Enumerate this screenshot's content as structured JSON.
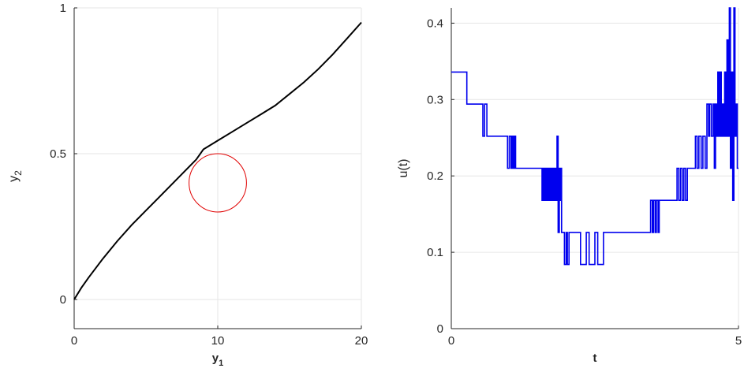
{
  "chart_data": [
    {
      "type": "line",
      "title": "",
      "xlabel_main": "y",
      "xlabel_sub": "1",
      "ylabel_main": "y",
      "ylabel_sub": "2",
      "xlim": [
        0,
        20
      ],
      "ylim": [
        -0.1,
        1.0
      ],
      "xticks": [
        0,
        10,
        20
      ],
      "xtick_labels": [
        "0",
        "10",
        "20"
      ],
      "yticks": [
        0,
        0.5,
        1
      ],
      "ytick_labels": [
        "0",
        "0.5",
        "1"
      ],
      "grid": true,
      "series": [
        {
          "color": "#000000",
          "x": [
            0,
            0.5,
            1,
            2,
            3,
            4,
            5,
            6,
            7,
            8,
            8.5,
            9,
            10,
            11,
            12,
            13,
            14,
            15,
            16,
            17,
            18,
            19,
            20
          ],
          "y": [
            0,
            0.04,
            0.075,
            0.14,
            0.2,
            0.255,
            0.305,
            0.355,
            0.405,
            0.455,
            0.48,
            0.515,
            0.545,
            0.575,
            0.605,
            0.635,
            0.665,
            0.705,
            0.745,
            0.79,
            0.84,
            0.895,
            0.95
          ]
        }
      ],
      "circle": {
        "color": "#e00000",
        "cx": 10,
        "cy": 0.4,
        "r": 2.0,
        "ry": 0.1
      }
    },
    {
      "type": "line",
      "title": "",
      "xlabel": "t",
      "ylabel": "u(t)",
      "xlim": [
        0,
        5
      ],
      "ylim": [
        0,
        0.42
      ],
      "xticks": [
        0,
        5
      ],
      "xtick_labels": [
        "0",
        "5"
      ],
      "yticks": [
        0,
        0.1,
        0.2,
        0.3,
        0.4
      ],
      "ytick_labels": [
        "0",
        "0.1",
        "0.2",
        "0.3",
        "0.4"
      ],
      "grid": true,
      "series": [
        {
          "color": "#0000ee",
          "step": true,
          "x": [
            0,
            0.27,
            0.52,
            0.55,
            0.58,
            0.62,
            0.95,
            0.98,
            1.01,
            1.04,
            1.06,
            1.08,
            1.1,
            1.12,
            1.55,
            1.58,
            1.6,
            1.62,
            1.64,
            1.66,
            1.68,
            1.7,
            1.72,
            1.74,
            1.76,
            1.78,
            1.8,
            1.82,
            1.84,
            1.86,
            1.88,
            1.9,
            1.91,
            1.92,
            1.95,
            1.97,
            2.0,
            2.02,
            2.05,
            2.2,
            2.25,
            2.35,
            2.4,
            2.5,
            2.55,
            2.65,
            2.7,
            3.45,
            3.47,
            3.5,
            3.52,
            3.55,
            3.57,
            3.6,
            3.62,
            3.9,
            3.93,
            3.96,
            3.99,
            4.02,
            4.05,
            4.08,
            4.11,
            4.15,
            4.22,
            4.25,
            4.28,
            4.31,
            4.35,
            4.38,
            4.42,
            4.45,
            4.48,
            4.5,
            4.53,
            4.56,
            4.58,
            4.6,
            4.62,
            4.64,
            4.66,
            4.68,
            4.7,
            4.72,
            4.74,
            4.76,
            4.78,
            4.8,
            4.82,
            4.84,
            4.86,
            4.88,
            4.9,
            4.92,
            4.94,
            4.96,
            4.98
          ],
          "y": [
            0.336,
            0.294,
            0.294,
            0.252,
            0.294,
            0.252,
            0.252,
            0.21,
            0.252,
            0.21,
            0.252,
            0.21,
            0.252,
            0.21,
            0.21,
            0.168,
            0.21,
            0.168,
            0.21,
            0.168,
            0.21,
            0.168,
            0.21,
            0.168,
            0.21,
            0.168,
            0.21,
            0.168,
            0.252,
            0.126,
            0.21,
            0.168,
            0.21,
            0.126,
            0.126,
            0.084,
            0.126,
            0.084,
            0.126,
            0.126,
            0.084,
            0.126,
            0.084,
            0.126,
            0.084,
            0.126,
            0.126,
            0.126,
            0.168,
            0.126,
            0.168,
            0.126,
            0.168,
            0.126,
            0.168,
            0.168,
            0.21,
            0.168,
            0.21,
            0.168,
            0.21,
            0.168,
            0.21,
            0.21,
            0.21,
            0.252,
            0.21,
            0.252,
            0.21,
            0.252,
            0.21,
            0.294,
            0.252,
            0.294,
            0.252,
            0.294,
            0.21,
            0.294,
            0.252,
            0.336,
            0.252,
            0.336,
            0.252,
            0.294,
            0.252,
            0.336,
            0.252,
            0.378,
            0.252,
            0.42,
            0.21,
            0.336,
            0.168,
            0.42,
            0.252,
            0.294,
            0.21
          ]
        }
      ]
    }
  ]
}
